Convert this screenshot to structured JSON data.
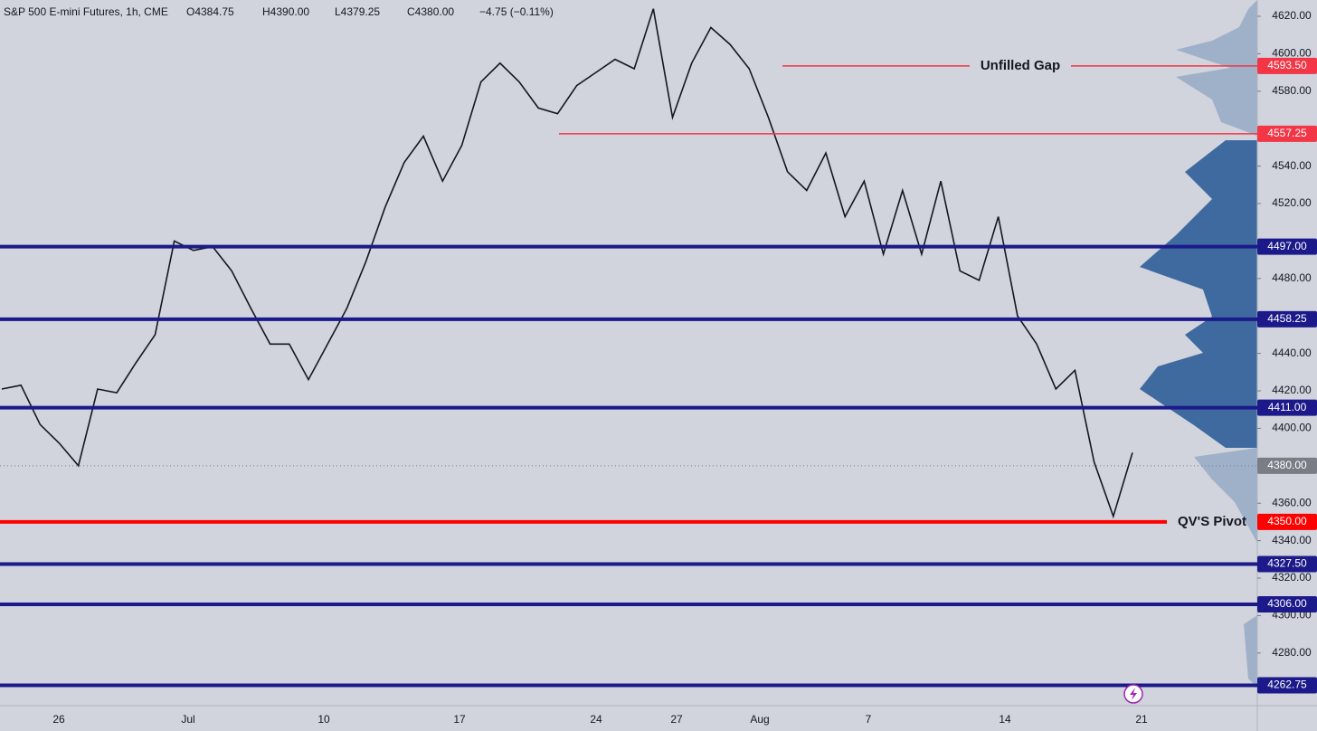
{
  "chart_data": {
    "type": "line",
    "title": "S&P 500 E-mini Futures, 1h, CME",
    "ohlc": [
      "O4384.75",
      "H4390.00",
      "L4379.25",
      "C4380.00",
      "−4.75 (−0.11%)"
    ],
    "x_labels": [
      "26",
      "Jul",
      "10",
      "17",
      "24",
      "27",
      "Aug",
      "7",
      "14",
      "21"
    ],
    "values": [
      4421,
      4423,
      4402,
      4392,
      4380,
      4421,
      4419,
      4435,
      4450,
      4500,
      4495,
      4497,
      4484,
      4464,
      4445,
      4445,
      4426,
      4445,
      4464,
      4489,
      4518,
      4542,
      4556,
      4532,
      4551,
      4585,
      4595,
      4585,
      4571,
      4568,
      4583,
      4590,
      4597,
      4592,
      4624,
      4566,
      4595,
      4614,
      4605,
      4592,
      4566,
      4537,
      4527,
      4547,
      4513,
      4532,
      4493,
      4527,
      4493,
      4532,
      4484,
      4479,
      4513,
      4460,
      4445,
      4421,
      4431,
      4382,
      4353,
      4387
    ],
    "color": "#131722",
    "ylim": [
      4251.9,
      4628.7
    ],
    "yticks": [
      {
        "value": 4620,
        "label": "4620.00"
      },
      {
        "value": 4600,
        "label": "4600.00"
      },
      {
        "value": 4580,
        "label": "4580.00"
      },
      {
        "value": 4540,
        "label": "4540.00"
      },
      {
        "value": 4520,
        "label": "4520.00"
      },
      {
        "value": 4480,
        "label": "4480.00"
      },
      {
        "value": 4440,
        "label": "4440.00"
      },
      {
        "value": 4420,
        "label": "4420.00"
      },
      {
        "value": 4400,
        "label": "4400.00"
      },
      {
        "value": 4360,
        "label": "4360.00"
      },
      {
        "value": 4340,
        "label": "4340.00"
      },
      {
        "value": 4320,
        "label": "4320.00"
      },
      {
        "value": 4300,
        "label": "4300.00"
      },
      {
        "value": 4280,
        "label": "4280.00"
      }
    ],
    "levels": [
      {
        "value": 4593.5,
        "label": "4593.50",
        "color": "#f23645",
        "annotation": "Unfilled Gap"
      },
      {
        "value": 4557.25,
        "label": "4557.25",
        "color": "#f23645"
      },
      {
        "value": 4497,
        "label": "4497.00",
        "color": "#1c1a8a"
      },
      {
        "value": 4458.25,
        "label": "4458.25",
        "color": "#1c1a8a"
      },
      {
        "value": 4411,
        "label": "4411.00",
        "color": "#1c1a8a"
      },
      {
        "value": 4380,
        "label": "4380.00",
        "color": "#7a7d85"
      },
      {
        "value": 4350,
        "label": "4350.00",
        "color": "#ff0000",
        "annotation": "QV'S Pivot"
      },
      {
        "value": 4327.5,
        "label": "4327.50",
        "color": "#1c1a8a"
      },
      {
        "value": 4306,
        "label": "4306.00",
        "color": "#1c1a8a"
      },
      {
        "value": 4262.75,
        "label": "4262.75",
        "color": "#1c1a8a"
      }
    ]
  }
}
